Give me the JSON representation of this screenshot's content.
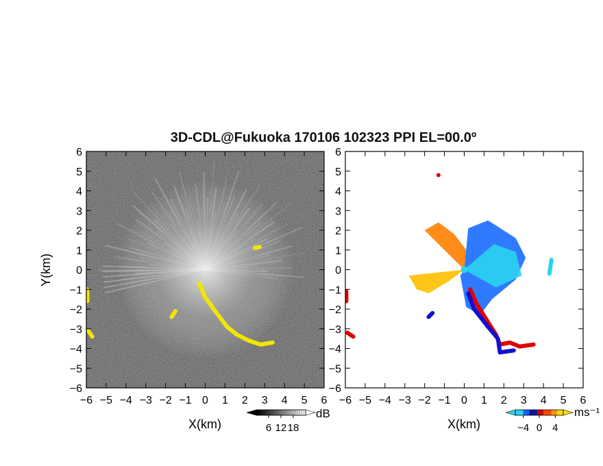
{
  "chart_data": {
    "title": "3D-CDL@Fukuoka 170106 102323 PPI EL=00.0º",
    "panels": [
      {
        "type": "heatmap",
        "variable": "reflectivity",
        "xlabel": "X(km)",
        "ylabel": "Y(km)",
        "xlim": [
          -6,
          6
        ],
        "ylim": [
          -6,
          6
        ],
        "xticks": [
          -6,
          -5,
          -4,
          -3,
          -2,
          -1,
          0,
          1,
          2,
          3,
          4,
          5,
          6
        ],
        "yticks": [
          6,
          5,
          4,
          3,
          2,
          1,
          0,
          -1,
          -2,
          -3,
          -4,
          -5,
          -6
        ],
        "background_color": "#2a2a2a",
        "highlight_color": "#f2e600",
        "colorbar": {
          "unit": "dB",
          "ticks": [
            "6",
            "12",
            "18"
          ],
          "range": [
            0,
            24
          ],
          "colors": [
            "#000000",
            "#ffffff"
          ]
        },
        "echo_regions": [
          {
            "name": "yellow-band-se",
            "color": "#f2e600",
            "points": [
              [
                -0.3,
                -0.7
              ],
              [
                0.0,
                -1.4
              ],
              [
                0.5,
                -2.1
              ],
              [
                1.1,
                -2.9
              ],
              [
                1.6,
                -3.3
              ],
              [
                2.2,
                -3.6
              ],
              [
                2.8,
                -3.8
              ],
              [
                3.4,
                -3.7
              ]
            ]
          },
          {
            "name": "yellow-edge-w1",
            "color": "#f2e600",
            "points": [
              [
                -5.95,
                -1.0
              ],
              [
                -5.95,
                -1.6
              ]
            ]
          },
          {
            "name": "yellow-edge-w2",
            "color": "#f2e600",
            "points": [
              [
                -5.9,
                -3.1
              ],
              [
                -5.7,
                -3.4
              ]
            ]
          },
          {
            "name": "yellow-spot-ne",
            "color": "#f2e600",
            "points": [
              [
                2.5,
                1.1
              ],
              [
                2.75,
                1.15
              ]
            ]
          },
          {
            "name": "yellow-spot-sw",
            "color": "#f2e600",
            "points": [
              [
                -1.7,
                -2.4
              ],
              [
                -1.5,
                -2.1
              ]
            ]
          }
        ]
      },
      {
        "type": "heatmap",
        "variable": "doppler-velocity",
        "xlabel": "X(km)",
        "ylabel": "",
        "xlim": [
          -6,
          6
        ],
        "ylim": [
          -6,
          6
        ],
        "xticks": [
          -6,
          -5,
          -4,
          -3,
          -2,
          -1,
          0,
          1,
          2,
          3,
          4,
          5,
          6
        ],
        "yticks": [
          6,
          5,
          4,
          3,
          2,
          1,
          0,
          -1,
          -2,
          -3,
          -4,
          -5,
          -6
        ],
        "background_color": "#ffffff",
        "colorbar": {
          "unit": "ms⁻¹",
          "ticks": [
            "−4",
            "0",
            "4"
          ],
          "range": [
            -6,
            6
          ],
          "colors": [
            "#2bd3f0",
            "#1560ff",
            "#001aa0",
            "#c80000",
            "#ff4a00",
            "#ff9800",
            "#ffe000"
          ]
        },
        "echo_regions": [
          {
            "name": "orange-sector-nw",
            "color": "#ff8000",
            "polygon": [
              [
                0,
                0
              ],
              [
                -2.0,
                2.0
              ],
              [
                -1.3,
                2.4
              ],
              [
                -0.5,
                1.8
              ],
              [
                0.1,
                1.0
              ]
            ]
          },
          {
            "name": "yellow-sector-w",
            "color": "#ffc000",
            "polygon": [
              [
                0,
                0
              ],
              [
                -2.8,
                -0.3
              ],
              [
                -2.4,
                -1.0
              ],
              [
                -1.8,
                -1.2
              ],
              [
                -0.8,
                -0.6
              ]
            ]
          },
          {
            "name": "blue-sector-ne",
            "color": "#1a6cff",
            "polygon": [
              [
                0,
                0
              ],
              [
                0.2,
                2.1
              ],
              [
                1.2,
                2.5
              ],
              [
                2.6,
                1.6
              ],
              [
                3.1,
                0.6
              ],
              [
                2.6,
                -0.5
              ],
              [
                1.4,
                -1.5
              ],
              [
                0.8,
                -2.3
              ],
              [
                0.1,
                -1.9
              ],
              [
                -0.2,
                -0.3
              ]
            ]
          },
          {
            "name": "cyan-sector-e",
            "color": "#2bd3f0",
            "polygon": [
              [
                0,
                0
              ],
              [
                1.5,
                1.3
              ],
              [
                2.6,
                0.9
              ],
              [
                2.9,
                -0.3
              ],
              [
                1.6,
                -0.9
              ]
            ]
          },
          {
            "name": "red-band-se",
            "color": "#e00000",
            "points": [
              [
                0.3,
                -1.0
              ],
              [
                0.6,
                -1.7
              ],
              [
                1.1,
                -2.5
              ],
              [
                1.6,
                -3.3
              ],
              [
                1.8,
                -3.8
              ],
              [
                2.3,
                -3.7
              ],
              [
                2.8,
                -3.9
              ],
              [
                3.5,
                -3.8
              ]
            ]
          },
          {
            "name": "blue-band-se",
            "color": "#1010d0",
            "points": [
              [
                0.2,
                -1.2
              ],
              [
                0.5,
                -2.0
              ],
              [
                1.2,
                -2.9
              ],
              [
                1.7,
                -3.5
              ],
              [
                1.8,
                -4.2
              ],
              [
                2.5,
                -4.1
              ]
            ]
          },
          {
            "name": "red-edge-w1",
            "color": "#e00000",
            "points": [
              [
                -5.95,
                -1.1
              ],
              [
                -5.95,
                -1.6
              ]
            ]
          },
          {
            "name": "red-edge-w2",
            "color": "#e00000",
            "points": [
              [
                -5.9,
                -3.2
              ],
              [
                -5.6,
                -3.4
              ]
            ]
          },
          {
            "name": "red-spot-n",
            "color": "#e00000",
            "points": [
              [
                -1.3,
                4.8
              ],
              [
                -1.3,
                4.8
              ]
            ]
          },
          {
            "name": "blue-spot-sw",
            "color": "#1010d0",
            "points": [
              [
                -1.8,
                -2.4
              ],
              [
                -1.6,
                -2.2
              ]
            ]
          },
          {
            "name": "cyan-spot-e",
            "color": "#2bd3f0",
            "points": [
              [
                4.3,
                -0.2
              ],
              [
                4.4,
                0.5
              ]
            ]
          }
        ]
      }
    ]
  }
}
